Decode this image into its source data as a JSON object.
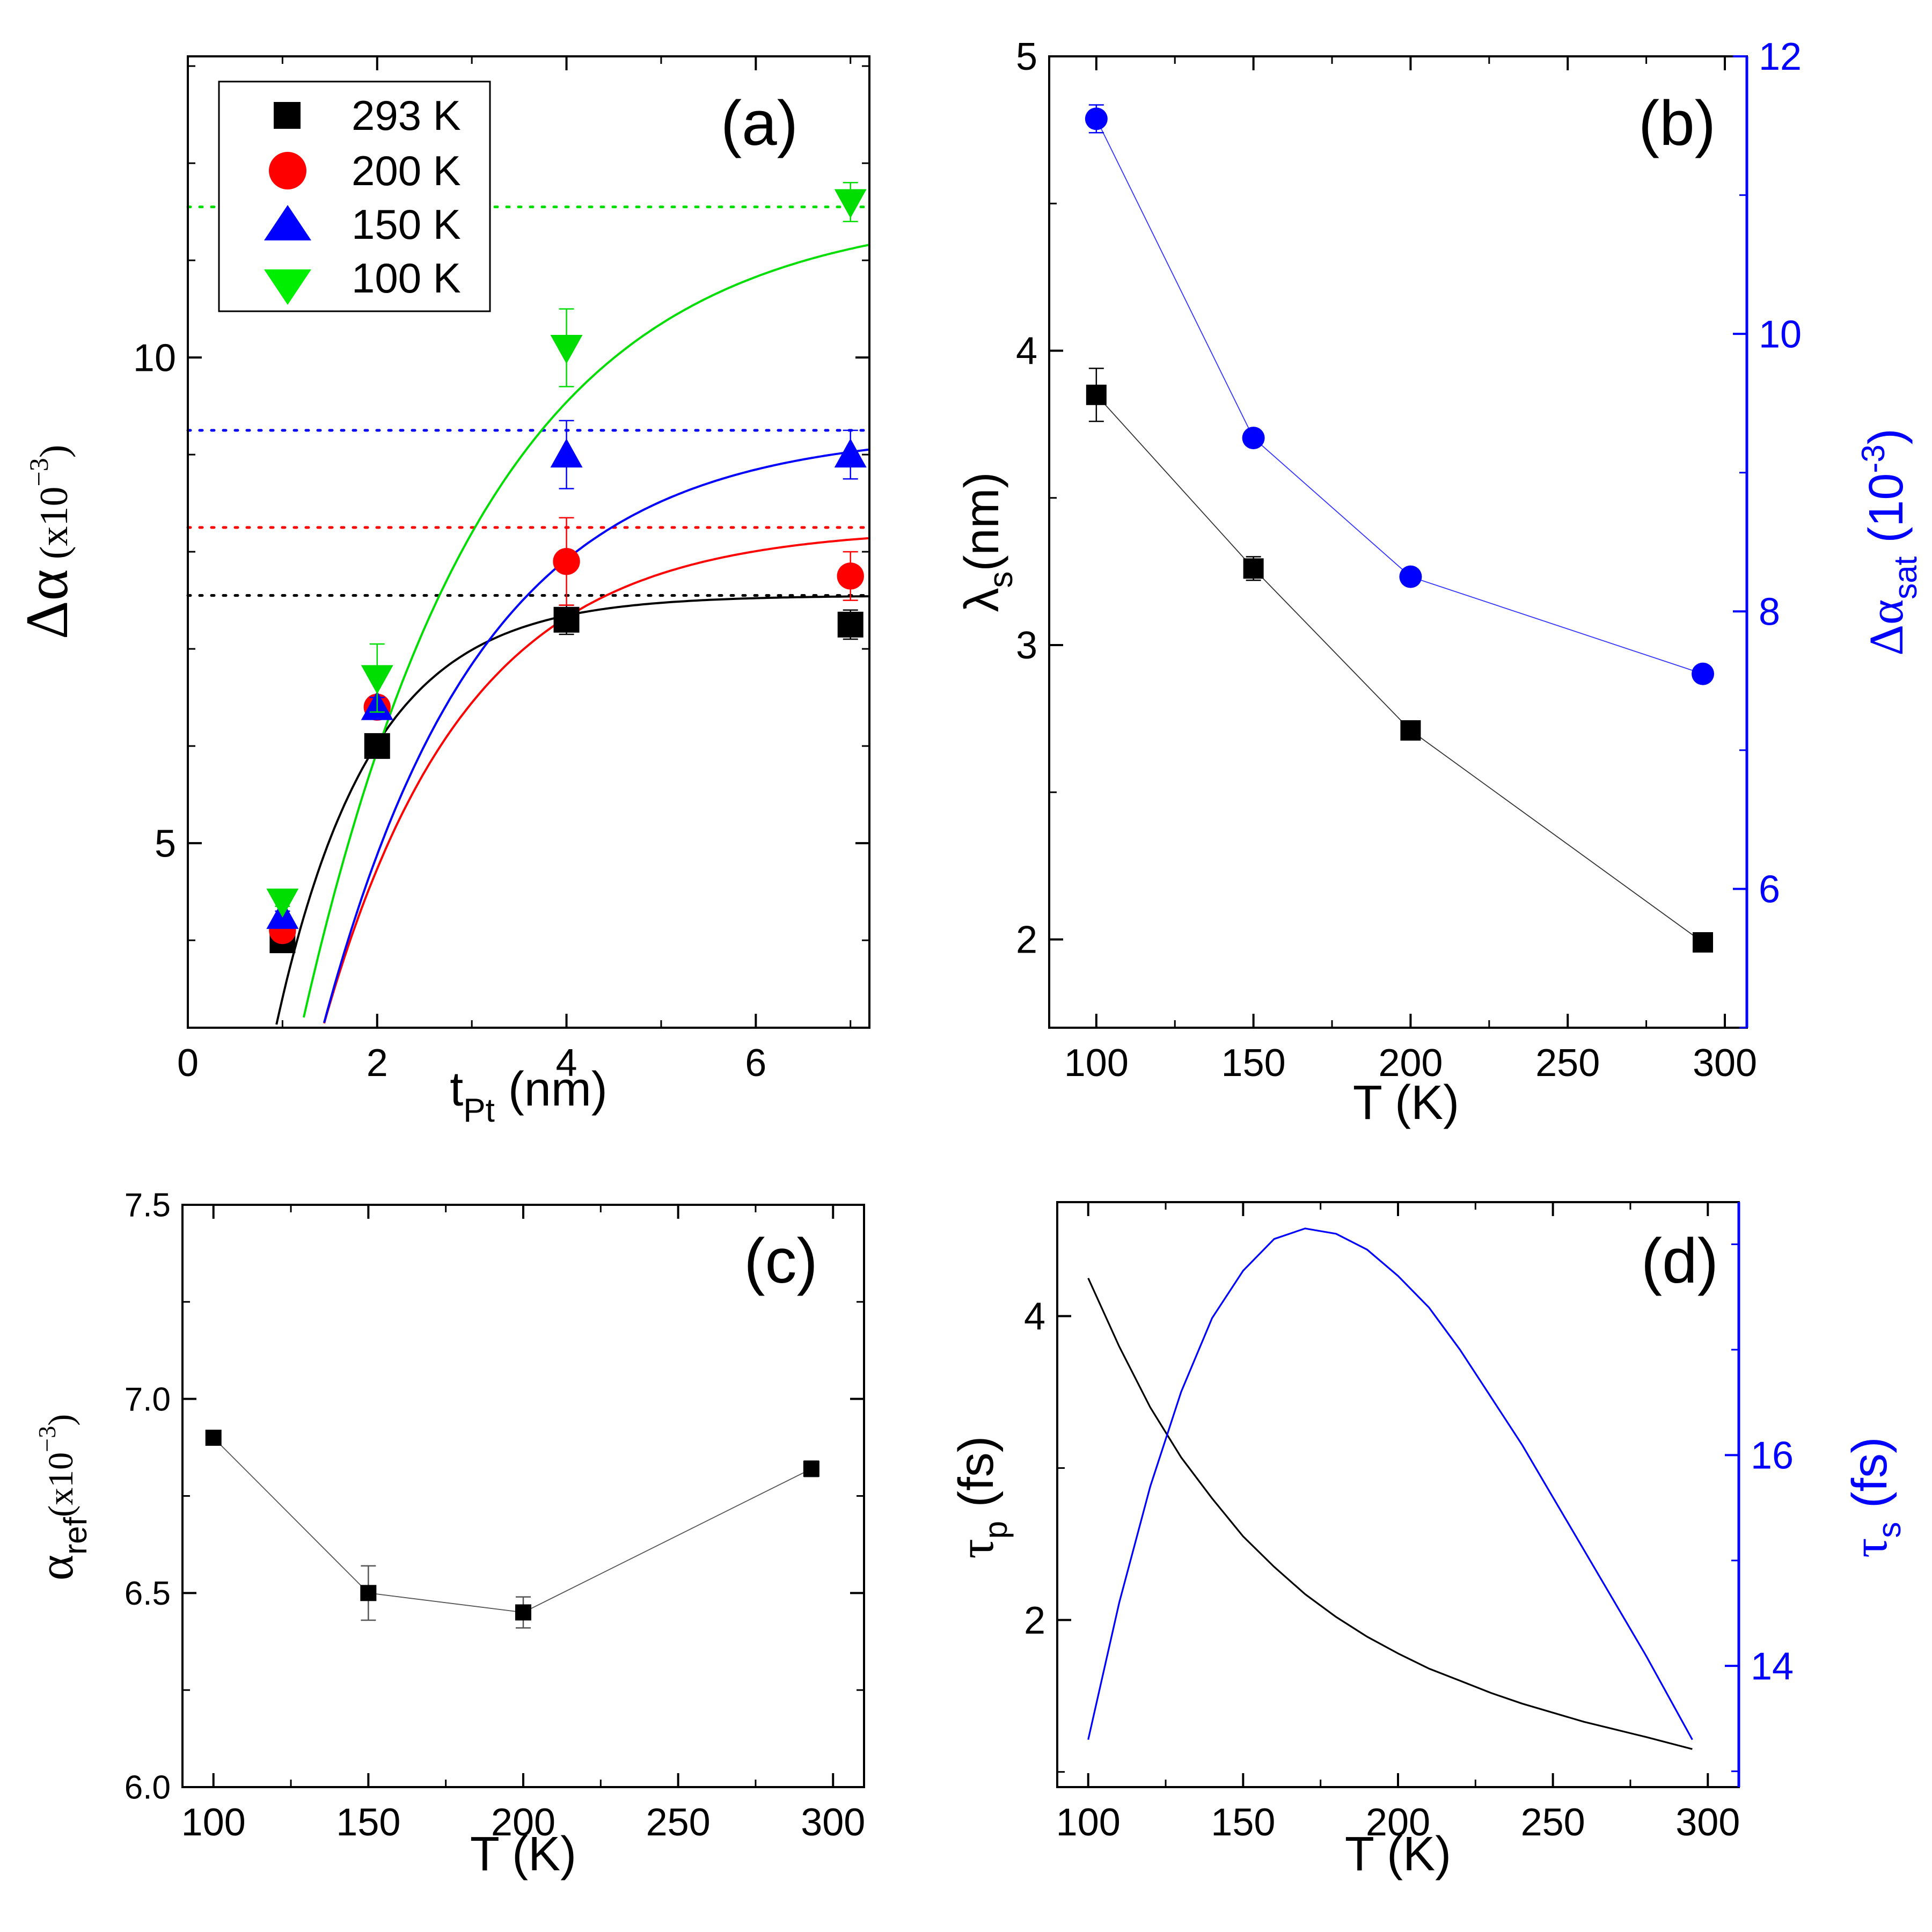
{
  "chart_data": [
    {
      "id": "a",
      "type": "scatter",
      "panel_label": "(a)",
      "xlabel": "t",
      "xlabel_sub": "Pt",
      "xlabel_suffix": " (nm)",
      "ylabel": "Δα",
      "ylabel_suffix": " (x10",
      "ylabel_sup": "−3",
      "ylabel_close": ")",
      "xlim": [
        0,
        7.2
      ],
      "ylim": [
        3.1,
        13.1
      ],
      "x_ticks": [
        0,
        2,
        4,
        6
      ],
      "y_ticks": [
        5,
        10
      ],
      "legend_position": "top-left",
      "colors": {
        "293 K": "#000000",
        "200 K": "#ff0000",
        "150 K": "#0000ff",
        "100 K": "#00dd00"
      },
      "series": [
        {
          "name": "293 K",
          "marker": "square",
          "x": [
            1,
            2,
            4,
            7
          ],
          "y": [
            4.0,
            6.0,
            7.3,
            7.25
          ],
          "err": [
            0.05,
            0.08,
            0.15,
            0.15
          ],
          "fit_saturation": 7.55,
          "fit_lambda": 1.0,
          "fit_x0": 0.4
        },
        {
          "name": "200 K",
          "marker": "circle",
          "x": [
            1,
            2,
            4,
            7
          ],
          "y": [
            4.1,
            6.4,
            7.9,
            7.75
          ],
          "err": [
            0.05,
            0.08,
            0.45,
            0.25
          ],
          "fit_saturation": 8.25,
          "fit_lambda": 1.5,
          "fit_x0": 0.72
        },
        {
          "name": "150 K",
          "marker": "triangle-up",
          "x": [
            1,
            2,
            4,
            7
          ],
          "y": [
            4.25,
            6.4,
            9.0,
            9.0
          ],
          "err": [
            0.05,
            0.1,
            0.35,
            0.25
          ],
          "fit_saturation": 9.25,
          "fit_lambda": 1.68,
          "fit_x0": 0.74
        },
        {
          "name": "100 K",
          "marker": "triangle-down",
          "x": [
            1,
            2,
            4,
            7
          ],
          "y": [
            4.4,
            6.7,
            10.1,
            11.6
          ],
          "err": [
            0.05,
            0.35,
            0.4,
            0.2
          ],
          "fit_saturation": 11.55,
          "fit_lambda": 1.95,
          "fit_x0": 0.59
        }
      ]
    },
    {
      "id": "b",
      "type": "line",
      "panel_label": "(b)",
      "xlabel": "T (K)",
      "ylabel": "λ",
      "ylabel_sub": "s",
      "ylabel_suffix": "(nm)",
      "y2label": "Δα",
      "y2label_sub": "sat",
      "y2label_suffix": " (10",
      "y2label_sup": "-3",
      "y2label_close": ")",
      "xlim": [
        85,
        307
      ],
      "ylim": [
        1.7,
        5.0
      ],
      "y2lim": [
        5.0,
        12.0
      ],
      "x_ticks": [
        100,
        150,
        200,
        250,
        300
      ],
      "y_ticks": [
        2,
        3,
        4,
        5
      ],
      "y2_ticks": [
        6,
        8,
        10,
        12
      ],
      "colors": {
        "left": "#000000",
        "right": "#0000ff"
      },
      "series": [
        {
          "name": "λs",
          "axis": "left",
          "marker": "square",
          "x": [
            100,
            150,
            200,
            293
          ],
          "y": [
            3.85,
            3.26,
            2.71,
            1.99
          ],
          "err": [
            0.09,
            0.04,
            0.02,
            0.02
          ]
        },
        {
          "name": "Δαsat",
          "axis": "right",
          "marker": "circle",
          "x": [
            100,
            150,
            200,
            293
          ],
          "y": [
            11.55,
            9.25,
            8.25,
            7.55
          ],
          "err": [
            0.1,
            0.05,
            0.04,
            0.04
          ]
        }
      ]
    },
    {
      "id": "c",
      "type": "line",
      "panel_label": "(c)",
      "xlabel": "T (K)",
      "ylabel": "α",
      "ylabel_sub": "ref",
      "ylabel_suffix": "(x10",
      "ylabel_sup": "−3",
      "ylabel_close": ")",
      "xlim": [
        90,
        310
      ],
      "ylim": [
        6.0,
        7.5
      ],
      "x_ticks": [
        100,
        150,
        200,
        250,
        300
      ],
      "y_ticks": [
        6.0,
        6.5,
        7.0,
        7.5
      ],
      "y_tick_labels": [
        "6.0",
        "6.5",
        "7.0",
        "7.5"
      ],
      "colors": {
        "series": "#000000"
      },
      "series": [
        {
          "name": "αref",
          "marker": "square",
          "x": [
            100,
            150,
            200,
            293
          ],
          "y": [
            6.9,
            6.5,
            6.45,
            6.82
          ],
          "err": [
            0.01,
            0.07,
            0.04,
            0.02
          ]
        }
      ]
    },
    {
      "id": "d",
      "type": "line",
      "panel_label": "(d)",
      "xlabel": "T (K)",
      "ylabel": "τ",
      "ylabel_sub": "p",
      "ylabel_suffix": " (fs)",
      "y2label": "τ",
      "y2label_sub": "s",
      "y2label_suffix": " (fs)",
      "xlim": [
        90,
        310
      ],
      "ylim": [
        0.9,
        4.75
      ],
      "y2lim": [
        12.85,
        18.4
      ],
      "x_ticks": [
        100,
        150,
        200,
        250,
        300
      ],
      "y_ticks": [
        2,
        4
      ],
      "y2_ticks": [
        14,
        16
      ],
      "colors": {
        "left": "#000000",
        "right": "#0000ff"
      },
      "series": [
        {
          "name": "τp",
          "axis": "left",
          "x": [
            100,
            110,
            120,
            130,
            140,
            150,
            160,
            170,
            180,
            190,
            200,
            210,
            220,
            230,
            240,
            250,
            260,
            270,
            280,
            295
          ],
          "y": [
            4.25,
            3.8,
            3.4,
            3.07,
            2.8,
            2.55,
            2.35,
            2.17,
            2.02,
            1.89,
            1.78,
            1.68,
            1.6,
            1.52,
            1.45,
            1.39,
            1.33,
            1.28,
            1.23,
            1.15
          ]
        },
        {
          "name": "τs",
          "axis": "right",
          "x": [
            100,
            110,
            120,
            130,
            140,
            150,
            160,
            170,
            180,
            190,
            200,
            210,
            220,
            230,
            240,
            250,
            260,
            270,
            280,
            295
          ],
          "y": [
            13.3,
            14.6,
            15.7,
            16.6,
            17.3,
            17.75,
            18.05,
            18.15,
            18.1,
            17.95,
            17.7,
            17.4,
            17.0,
            16.55,
            16.1,
            15.6,
            15.1,
            14.6,
            14.1,
            13.3
          ]
        }
      ]
    }
  ]
}
